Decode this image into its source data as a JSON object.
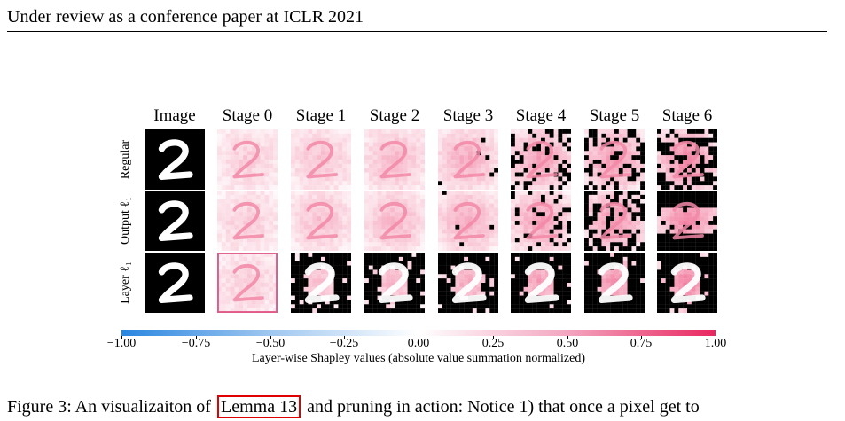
{
  "header": {
    "text": "Under review as a conference paper at ICLR 2021"
  },
  "figure": {
    "columns": [
      "Image",
      "Stage 0",
      "Stage 1",
      "Stage 2",
      "Stage 3",
      "Stage 4",
      "Stage 5",
      "Stage 6"
    ],
    "rows": [
      "Regular",
      "Output ℓ₁",
      "Layer ℓ₁"
    ],
    "digit": "2",
    "colors": {
      "positive": "#e8265f",
      "negative": "#2a86e0",
      "neutral": "#ffffff",
      "masked": "#000000",
      "highlight": "#e05a8a"
    }
  },
  "colorbar": {
    "ticks": [
      "−1.00",
      "−0.75",
      "−0.50",
      "−0.25",
      "0.00",
      "0.25",
      "0.50",
      "0.75",
      "1.00"
    ],
    "label": "Layer-wise Shapley values (absolute value summation normalized)",
    "range": [
      -1.0,
      1.0
    ]
  },
  "caption": {
    "prefix": "Figure 3: An visualizaiton of",
    "ref": "Lemma 13",
    "suffix": "and pruning in action: Notice 1) that once a pixel get to"
  }
}
